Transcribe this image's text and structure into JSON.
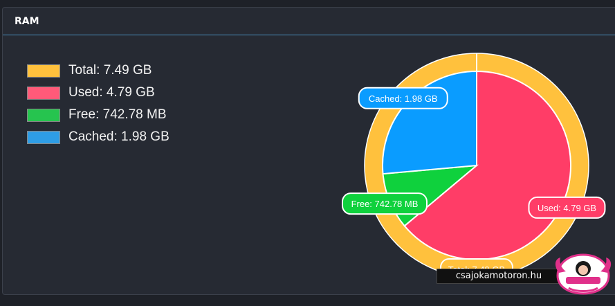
{
  "panel": {
    "title": "RAM"
  },
  "colors": {
    "total": "#ffc13d",
    "used": "#ff3d67",
    "free": "#0fd13d",
    "cached": "#0a9cff"
  },
  "legend": [
    {
      "label": "Total: 7.49 GB",
      "color": "#ffc13d"
    },
    {
      "label": "Used: 4.79 GB",
      "color": "#ff5a79"
    },
    {
      "label": "Free: 742.78 MB",
      "color": "#26c44f"
    },
    {
      "label": "Cached: 1.98 GB",
      "color": "#2e9de6"
    }
  ],
  "chart_data": {
    "type": "pie",
    "outer_ring": {
      "name": "Total",
      "value_gb": 7.49,
      "label": "Total: 7.49 GB"
    },
    "slices": [
      {
        "name": "Used",
        "value_gb": 4.79,
        "label": "Used: 4.79 GB",
        "color": "#ff3d67"
      },
      {
        "name": "Free",
        "value_gb": 0.7254,
        "label": "Free: 742.78 MB",
        "color": "#0fd13d"
      },
      {
        "name": "Cached",
        "value_gb": 1.98,
        "label": "Cached: 1.98 GB",
        "color": "#0a9cff"
      }
    ],
    "legend_position": "left"
  },
  "watermark": {
    "text": "csajokamotoron.hu"
  }
}
